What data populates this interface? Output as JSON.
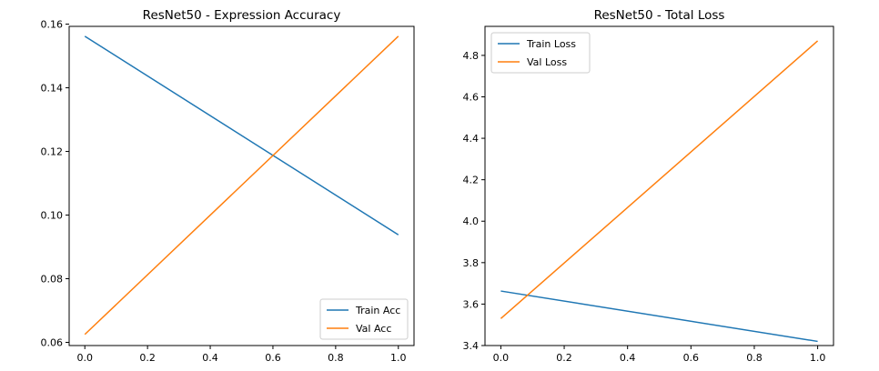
{
  "chart_data": [
    {
      "type": "line",
      "title": "ResNet50 - Expression Accuracy",
      "xlabel": "",
      "ylabel": "",
      "xlim": [
        -0.05,
        1.05
      ],
      "ylim": [
        0.059,
        0.1593
      ],
      "xticks": [
        0.0,
        0.2,
        0.4,
        0.6,
        0.8,
        1.0
      ],
      "xtick_labels": [
        "0.0",
        "0.2",
        "0.4",
        "0.6",
        "0.8",
        "1.0"
      ],
      "yticks": [
        0.06,
        0.08,
        0.1,
        0.12,
        0.14,
        0.16
      ],
      "ytick_labels": [
        "0.06",
        "0.08",
        "0.10",
        "0.12",
        "0.14",
        "0.16"
      ],
      "grid": false,
      "legend_position": "lower-right",
      "series": [
        {
          "name": "Train Acc",
          "color": "#1f77b4",
          "x": [
            0.0,
            1.0
          ],
          "y": [
            0.1562,
            0.0938
          ]
        },
        {
          "name": "Val Acc",
          "color": "#ff7f0e",
          "x": [
            0.0,
            1.0
          ],
          "y": [
            0.0625,
            0.1562
          ]
        }
      ]
    },
    {
      "type": "line",
      "title": "ResNet50 - Total Loss",
      "xlabel": "",
      "ylabel": "",
      "xlim": [
        -0.05,
        1.05
      ],
      "ylim": [
        3.4,
        4.94
      ],
      "xticks": [
        0.0,
        0.2,
        0.4,
        0.6,
        0.8,
        1.0
      ],
      "xtick_labels": [
        "0.0",
        "0.2",
        "0.4",
        "0.6",
        "0.8",
        "1.0"
      ],
      "yticks": [
        3.4,
        3.6,
        3.8,
        4.0,
        4.2,
        4.4,
        4.6,
        4.8
      ],
      "ytick_labels": [
        "3.4",
        "3.6",
        "3.8",
        "4.0",
        "4.2",
        "4.4",
        "4.6",
        "4.8"
      ],
      "grid": false,
      "legend_position": "top-left",
      "series": [
        {
          "name": "Train Loss",
          "color": "#1f77b4",
          "x": [
            0.0,
            1.0
          ],
          "y": [
            3.663,
            3.42
          ]
        },
        {
          "name": "Val Loss",
          "color": "#ff7f0e",
          "x": [
            0.0,
            1.0
          ],
          "y": [
            3.53,
            4.87
          ]
        }
      ]
    }
  ]
}
